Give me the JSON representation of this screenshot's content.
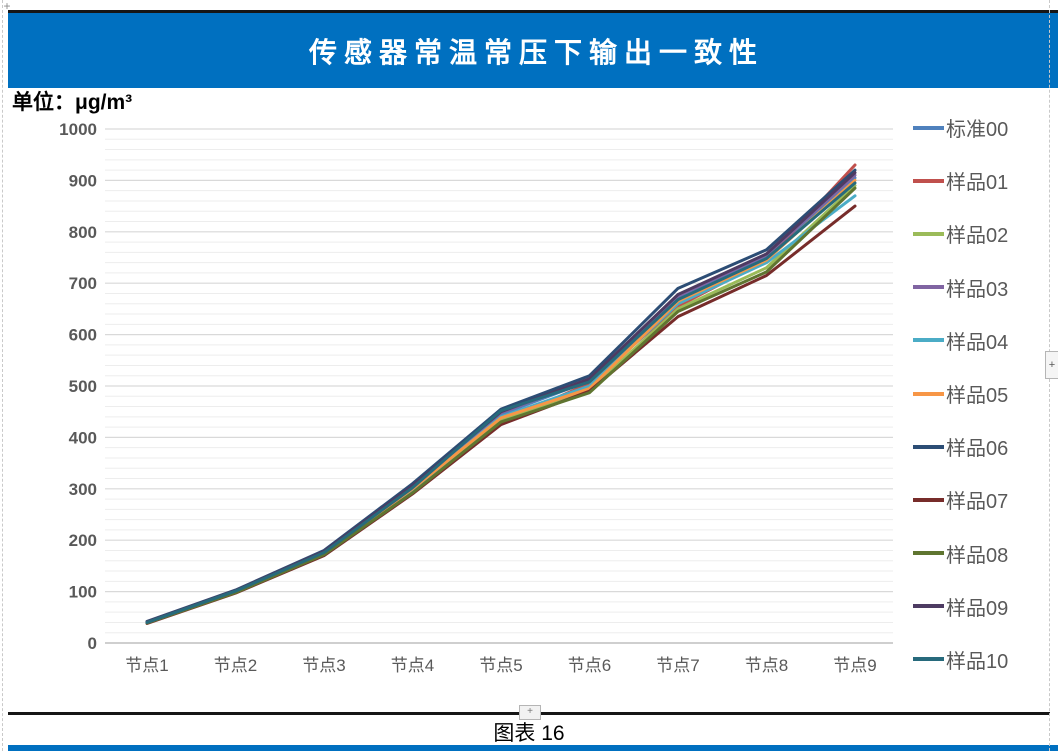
{
  "header": {
    "title": "传感器常温常压下输出一致性"
  },
  "unit_label": "单位：μg/m³",
  "caption": {
    "text": "图表 16",
    "plus_glyph": "+"
  },
  "right_edge_button_glyph": "+",
  "move_handle_glyph": "+",
  "colors": {
    "title_bar": "#0070C0",
    "axis_text": "#595959",
    "major_gridline": "#D9D9D9",
    "minor_gridline": "#EDEDED",
    "axis_line": "#BFBFBF"
  },
  "chart_data": {
    "type": "line",
    "title": "传感器常温常压下输出一致性",
    "unit_label": "单位：μg/m³",
    "categories": [
      "节点1",
      "节点2",
      "节点3",
      "节点4",
      "节点5",
      "节点6",
      "节点7",
      "节点8",
      "节点9"
    ],
    "xlabel": "",
    "ylabel": "μg/m³",
    "ylim": [
      0,
      1000
    ],
    "ytick_interval": 100,
    "minor_gridline_interval": 20,
    "grid": true,
    "legend_position": "right",
    "series": [
      {
        "name": "标准00",
        "color": "#4F81BD",
        "values": [
          40,
          100,
          175,
          300,
          445,
          510,
          670,
          750,
          905
        ]
      },
      {
        "name": "样品01",
        "color": "#C0504D",
        "values": [
          40,
          100,
          175,
          300,
          430,
          505,
          655,
          745,
          930
        ]
      },
      {
        "name": "样品02",
        "color": "#9BBB59",
        "values": [
          40,
          99,
          173,
          295,
          435,
          492,
          650,
          730,
          890
        ]
      },
      {
        "name": "样品03",
        "color": "#8064A2",
        "values": [
          41,
          102,
          177,
          305,
          448,
          512,
          675,
          755,
          910
        ]
      },
      {
        "name": "样品04",
        "color": "#4BACC6",
        "values": [
          40,
          100,
          174,
          298,
          440,
          500,
          660,
          740,
          870
        ]
      },
      {
        "name": "样品05",
        "color": "#F79646",
        "values": [
          41,
          100,
          175,
          300,
          438,
          495,
          665,
          745,
          900
        ]
      },
      {
        "name": "样品06",
        "color": "#2C4D75",
        "values": [
          42,
          103,
          180,
          310,
          455,
          520,
          690,
          765,
          920
        ]
      },
      {
        "name": "样品07",
        "color": "#772C2A",
        "values": [
          38,
          97,
          170,
          290,
          425,
          490,
          635,
          715,
          850
        ]
      },
      {
        "name": "样品08",
        "color": "#5F7530",
        "values": [
          39,
          98,
          172,
          292,
          430,
          487,
          645,
          722,
          885
        ]
      },
      {
        "name": "样品09",
        "color": "#4D3B62",
        "values": [
          41,
          102,
          178,
          306,
          450,
          514,
          678,
          757,
          915
        ]
      },
      {
        "name": "样品10",
        "color": "#276A7C",
        "values": [
          40,
          101,
          176,
          302,
          452,
          508,
          668,
          748,
          895
        ]
      }
    ]
  }
}
